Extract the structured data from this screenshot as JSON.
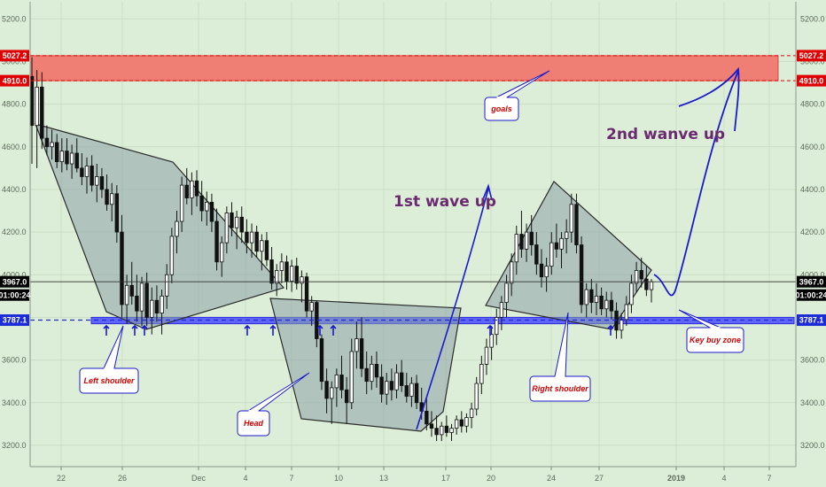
{
  "chart_data": {
    "type": "candlestick",
    "y_axis": {
      "range": [
        3100,
        5280
      ],
      "ticks": [
        "5200.0",
        "5000.0",
        "4800.0",
        "4600.0",
        "4400.0",
        "4200.0",
        "4000.0",
        "3800.0",
        "3600.0",
        "3400.0",
        "3200.0"
      ],
      "tick_values": [
        5200,
        5000,
        4800,
        4600,
        4400,
        4200,
        4000,
        3800,
        3600,
        3400,
        3200
      ]
    },
    "x_axis": {
      "tick_labels": [
        "22",
        "26",
        "Dec",
        "4",
        "7",
        "10",
        "13",
        "17",
        "20",
        "24",
        "27",
        "2019",
        "4",
        "7"
      ],
      "bold_labels": [
        "2019"
      ]
    },
    "levels": {
      "resistance_top": {
        "value": 5027.2,
        "label": "5027.2"
      },
      "resistance_bottom": {
        "value": 4910.0,
        "label": "4910.0"
      },
      "current_price": {
        "value": 3967.0,
        "label": "3967.0",
        "countdown": "01:00:24"
      },
      "key_buy": {
        "value": 3787.1,
        "label": "3787.1"
      }
    },
    "zones": {
      "goal_zone": {
        "from": 4910.0,
        "to": 5027.2,
        "color": "#ef7f75"
      },
      "buy_zone": {
        "from": 3770,
        "to": 3800,
        "color": "#4a4cff"
      }
    },
    "annotations": {
      "goals": "goals",
      "left_shoulder": "Left shoulder",
      "head": "Head",
      "right_shoulder": "Right shoulder",
      "key_buy_zone": "Key buy zone",
      "wave1": "1st wave up",
      "wave2": "2nd wanve up"
    },
    "colors": {
      "background": "#ddeed8",
      "grid": "#c9ddc4",
      "candle": "#111111",
      "pattern_fill": "#8aa3a8",
      "arrow": "#1a1acc",
      "callout_text": "#d40000",
      "wave_text": "#6a2a6f",
      "red_tag": "#e00000",
      "blue_tag": "#1c2bd8",
      "black_tag": "#000000"
    },
    "candles": [
      [
        4930,
        5020,
        4520,
        4700
      ],
      [
        4700,
        4960,
        4500,
        4880
      ],
      [
        4880,
        4950,
        4590,
        4640
      ],
      [
        4640,
        4700,
        4560,
        4600
      ],
      [
        4600,
        4680,
        4540,
        4620
      ],
      [
        4620,
        4660,
        4500,
        4530
      ],
      [
        4530,
        4640,
        4480,
        4580
      ],
      [
        4580,
        4640,
        4490,
        4520
      ],
      [
        4520,
        4610,
        4450,
        4570
      ],
      [
        4570,
        4640,
        4480,
        4500
      ],
      [
        4500,
        4570,
        4420,
        4460
      ],
      [
        4460,
        4550,
        4380,
        4510
      ],
      [
        4510,
        4560,
        4390,
        4420
      ],
      [
        4420,
        4520,
        4340,
        4460
      ],
      [
        4460,
        4500,
        4360,
        4400
      ],
      [
        4400,
        4470,
        4300,
        4330
      ],
      [
        4330,
        4430,
        4250,
        4380
      ],
      [
        4380,
        4420,
        4150,
        4200
      ],
      [
        4200,
        4280,
        3800,
        3860
      ],
      [
        3860,
        4000,
        3770,
        3950
      ],
      [
        3950,
        4060,
        3860,
        3900
      ],
      [
        3900,
        4000,
        3780,
        3830
      ],
      [
        3830,
        3990,
        3760,
        3960
      ],
      [
        3960,
        4010,
        3760,
        3800
      ],
      [
        3800,
        3940,
        3720,
        3880
      ],
      [
        3880,
        3950,
        3780,
        3820
      ],
      [
        3820,
        3930,
        3720,
        3900
      ],
      [
        3900,
        4050,
        3840,
        4000
      ],
      [
        4000,
        4220,
        3960,
        4180
      ],
      [
        4180,
        4300,
        4100,
        4250
      ],
      [
        4250,
        4460,
        4200,
        4420
      ],
      [
        4420,
        4500,
        4330,
        4360
      ],
      [
        4360,
        4480,
        4280,
        4440
      ],
      [
        4440,
        4490,
        4320,
        4370
      ],
      [
        4370,
        4440,
        4250,
        4300
      ],
      [
        4300,
        4390,
        4230,
        4340
      ],
      [
        4340,
        4380,
        4200,
        4250
      ],
      [
        4250,
        4310,
        4020,
        4060
      ],
      [
        4060,
        4180,
        3990,
        4150
      ],
      [
        4150,
        4320,
        4100,
        4290
      ],
      [
        4290,
        4340,
        4180,
        4220
      ],
      [
        4220,
        4300,
        4120,
        4270
      ],
      [
        4270,
        4320,
        4150,
        4200
      ],
      [
        4200,
        4260,
        4100,
        4150
      ],
      [
        4150,
        4240,
        4080,
        4200
      ],
      [
        4200,
        4230,
        4080,
        4110
      ],
      [
        4110,
        4190,
        4020,
        4160
      ],
      [
        4160,
        4200,
        4040,
        4070
      ],
      [
        4070,
        4130,
        3930,
        3960
      ],
      [
        3960,
        4050,
        3900,
        4020
      ],
      [
        4020,
        4100,
        3960,
        4060
      ],
      [
        4060,
        4090,
        3930,
        3970
      ],
      [
        3970,
        4070,
        3920,
        4040
      ],
      [
        4040,
        4080,
        3930,
        3960
      ],
      [
        3960,
        4020,
        3870,
        3990
      ],
      [
        3990,
        4010,
        3800,
        3830
      ],
      [
        3830,
        3900,
        3760,
        3870
      ],
      [
        3870,
        3880,
        3660,
        3700
      ],
      [
        3700,
        3720,
        3460,
        3500
      ],
      [
        3500,
        3560,
        3350,
        3420
      ],
      [
        3420,
        3500,
        3300,
        3470
      ],
      [
        3470,
        3560,
        3380,
        3530
      ],
      [
        3530,
        3620,
        3420,
        3460
      ],
      [
        3460,
        3520,
        3300,
        3400
      ],
      [
        3400,
        3700,
        3370,
        3640
      ],
      [
        3640,
        3780,
        3560,
        3700
      ],
      [
        3700,
        3800,
        3520,
        3560
      ],
      [
        3560,
        3640,
        3440,
        3500
      ],
      [
        3500,
        3620,
        3460,
        3580
      ],
      [
        3580,
        3640,
        3470,
        3520
      ],
      [
        3520,
        3580,
        3400,
        3440
      ],
      [
        3440,
        3540,
        3390,
        3500
      ],
      [
        3500,
        3560,
        3410,
        3460
      ],
      [
        3460,
        3580,
        3420,
        3540
      ],
      [
        3540,
        3600,
        3450,
        3480
      ],
      [
        3480,
        3540,
        3400,
        3430
      ],
      [
        3430,
        3520,
        3380,
        3490
      ],
      [
        3490,
        3530,
        3370,
        3400
      ],
      [
        3400,
        3470,
        3320,
        3360
      ],
      [
        3360,
        3420,
        3270,
        3300
      ],
      [
        3300,
        3360,
        3240,
        3280
      ],
      [
        3280,
        3340,
        3220,
        3250
      ],
      [
        3250,
        3310,
        3220,
        3290
      ],
      [
        3290,
        3340,
        3240,
        3260
      ],
      [
        3260,
        3300,
        3220,
        3280
      ],
      [
        3280,
        3340,
        3250,
        3320
      ],
      [
        3320,
        3360,
        3260,
        3290
      ],
      [
        3290,
        3350,
        3260,
        3330
      ],
      [
        3330,
        3400,
        3280,
        3370
      ],
      [
        3370,
        3520,
        3340,
        3490
      ],
      [
        3490,
        3620,
        3440,
        3580
      ],
      [
        3580,
        3700,
        3530,
        3660
      ],
      [
        3660,
        3760,
        3600,
        3720
      ],
      [
        3720,
        3840,
        3670,
        3800
      ],
      [
        3800,
        3900,
        3740,
        3870
      ],
      [
        3870,
        4000,
        3800,
        3960
      ],
      [
        3960,
        4100,
        3900,
        4060
      ],
      [
        4060,
        4230,
        4000,
        4190
      ],
      [
        4190,
        4300,
        4080,
        4120
      ],
      [
        4120,
        4240,
        4060,
        4200
      ],
      [
        4200,
        4280,
        4090,
        4140
      ],
      [
        4140,
        4200,
        4000,
        4050
      ],
      [
        4050,
        4120,
        3940,
        3990
      ],
      [
        3990,
        4080,
        3920,
        4040
      ],
      [
        4040,
        4200,
        4000,
        4150
      ],
      [
        4150,
        4240,
        4080,
        4120
      ],
      [
        4120,
        4200,
        4030,
        4170
      ],
      [
        4170,
        4260,
        4100,
        4200
      ],
      [
        4200,
        4380,
        4150,
        4330
      ],
      [
        4330,
        4380,
        4100,
        4140
      ],
      [
        4140,
        4180,
        3820,
        3860
      ],
      [
        3860,
        3960,
        3800,
        3930
      ],
      [
        3930,
        3980,
        3820,
        3870
      ],
      [
        3870,
        3960,
        3810,
        3900
      ],
      [
        3900,
        3940,
        3810,
        3840
      ],
      [
        3840,
        3920,
        3800,
        3880
      ],
      [
        3880,
        3920,
        3790,
        3830
      ],
      [
        3830,
        3870,
        3700,
        3740
      ],
      [
        3740,
        3820,
        3700,
        3790
      ],
      [
        3790,
        3900,
        3760,
        3860
      ],
      [
        3860,
        4000,
        3820,
        3960
      ],
      [
        3960,
        4060,
        3920,
        4020
      ],
      [
        4020,
        4080,
        3940,
        3980
      ],
      [
        3980,
        4040,
        3900,
        3930
      ],
      [
        3930,
        3980,
        3870,
        3967
      ]
    ]
  }
}
